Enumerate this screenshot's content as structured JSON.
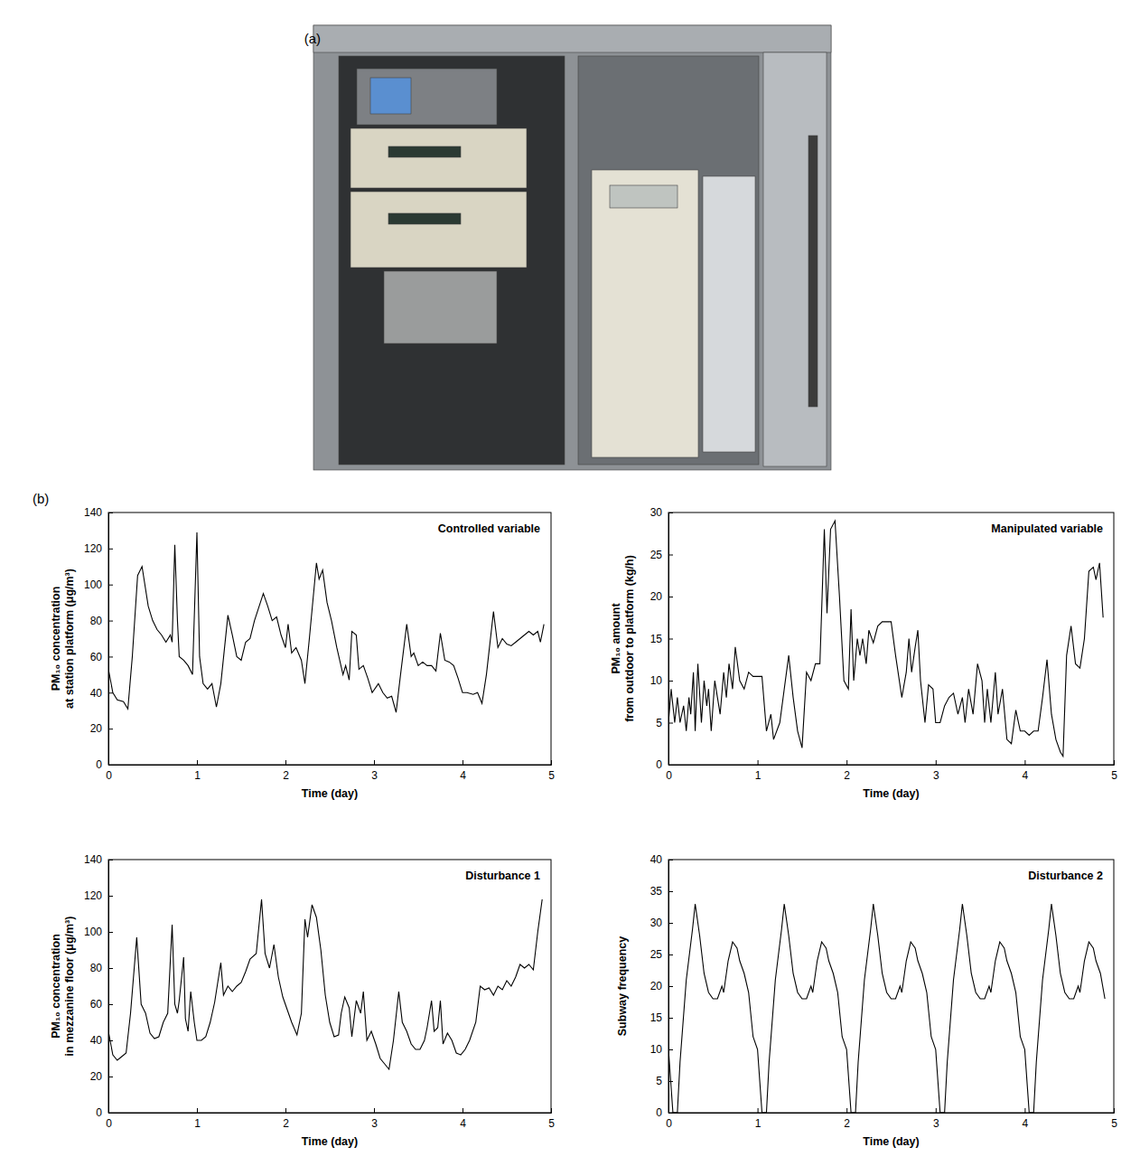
{
  "figure": {
    "panel_a_label": "(a)",
    "panel_b_label": "(b)"
  },
  "chart_data": [
    {
      "type": "line",
      "title": "Controlled variable",
      "x_label": "Time (day)",
      "y_label": [
        "PM₁₀ concentration",
        "at station platform (μg/m³)"
      ],
      "xlim": [
        0,
        5
      ],
      "xticks": [
        0,
        1,
        2,
        3,
        4,
        5
      ],
      "ylim": [
        0,
        140
      ],
      "yticks": [
        0,
        20,
        40,
        60,
        80,
        100,
        120,
        140
      ],
      "grid": false,
      "x": [
        0,
        0.05,
        0.1,
        0.17,
        0.22,
        0.27,
        0.33,
        0.38,
        0.45,
        0.5,
        0.55,
        0.6,
        0.65,
        0.7,
        0.72,
        0.75,
        0.78,
        0.8,
        0.85,
        0.9,
        0.95,
        1.0,
        1.03,
        1.07,
        1.12,
        1.17,
        1.22,
        1.27,
        1.35,
        1.4,
        1.45,
        1.5,
        1.55,
        1.6,
        1.65,
        1.75,
        1.8,
        1.85,
        1.9,
        1.95,
        2.0,
        2.03,
        2.07,
        2.12,
        2.18,
        2.22,
        2.27,
        2.35,
        2.38,
        2.42,
        2.47,
        2.52,
        2.58,
        2.65,
        2.68,
        2.72,
        2.75,
        2.8,
        2.83,
        2.88,
        2.93,
        2.98,
        3.05,
        3.1,
        3.15,
        3.2,
        3.25,
        3.3,
        3.37,
        3.42,
        3.45,
        3.5,
        3.55,
        3.6,
        3.65,
        3.7,
        3.75,
        3.8,
        3.85,
        3.9,
        3.95,
        4.0,
        4.05,
        4.12,
        4.17,
        4.22,
        4.27,
        4.35,
        4.4,
        4.45,
        4.5,
        4.55,
        4.6,
        4.65,
        4.7,
        4.75,
        4.8,
        4.85,
        4.88,
        4.92
      ],
      "series": [
        {
          "color": "#000000",
          "values": [
            53,
            40,
            36,
            35,
            31,
            60,
            105,
            110,
            88,
            80,
            75,
            72,
            68,
            72,
            68,
            122,
            80,
            60,
            58,
            55,
            50,
            129,
            60,
            45,
            42,
            45,
            32,
            45,
            83,
            72,
            60,
            58,
            68,
            70,
            80,
            95,
            88,
            80,
            82,
            72,
            65,
            78,
            62,
            65,
            58,
            45,
            70,
            112,
            103,
            108,
            90,
            80,
            65,
            50,
            55,
            47,
            74,
            72,
            53,
            55,
            48,
            40,
            45,
            40,
            37,
            38,
            29,
            50,
            78,
            60,
            62,
            55,
            57,
            55,
            55,
            52,
            73,
            58,
            57,
            55,
            48,
            40,
            40,
            39,
            40,
            34,
            50,
            85,
            65,
            70,
            67,
            66,
            68,
            70,
            72,
            74,
            72,
            74,
            68,
            78
          ]
        }
      ]
    },
    {
      "type": "line",
      "title": "Manipulated variable",
      "x_label": "Time (day)",
      "y_label": [
        "PM₁₀ amount",
        "from outdoor to platform (kg/h)"
      ],
      "xlim": [
        0,
        5
      ],
      "xticks": [
        0,
        1,
        2,
        3,
        4,
        5
      ],
      "ylim": [
        0,
        30
      ],
      "yticks": [
        0,
        5,
        10,
        15,
        20,
        25,
        30
      ],
      "grid": false,
      "x": [
        0,
        0.03,
        0.07,
        0.1,
        0.13,
        0.17,
        0.2,
        0.23,
        0.25,
        0.28,
        0.3,
        0.33,
        0.37,
        0.4,
        0.43,
        0.45,
        0.48,
        0.52,
        0.55,
        0.58,
        0.62,
        0.65,
        0.68,
        0.72,
        0.75,
        0.8,
        0.85,
        0.9,
        0.95,
        1.05,
        1.1,
        1.15,
        1.18,
        1.25,
        1.35,
        1.4,
        1.45,
        1.5,
        1.55,
        1.6,
        1.65,
        1.7,
        1.75,
        1.78,
        1.82,
        1.87,
        1.92,
        1.97,
        2.02,
        2.05,
        2.08,
        2.12,
        2.15,
        2.18,
        2.22,
        2.25,
        2.3,
        2.35,
        2.4,
        2.45,
        2.5,
        2.55,
        2.62,
        2.67,
        2.7,
        2.73,
        2.77,
        2.8,
        2.83,
        2.88,
        2.92,
        2.97,
        3.0,
        3.05,
        3.1,
        3.15,
        3.2,
        3.25,
        3.3,
        3.33,
        3.37,
        3.42,
        3.47,
        3.52,
        3.55,
        3.58,
        3.62,
        3.67,
        3.7,
        3.75,
        3.8,
        3.85,
        3.9,
        3.95,
        4.0,
        4.05,
        4.1,
        4.15,
        4.2,
        4.25,
        4.3,
        4.35,
        4.4,
        4.43,
        4.47,
        4.52,
        4.57,
        4.62,
        4.67,
        4.72,
        4.77,
        4.8,
        4.84,
        4.88
      ],
      "series": [
        {
          "color": "#000000",
          "values": [
            5,
            9,
            5,
            8,
            5,
            7,
            4,
            8,
            6,
            11,
            4,
            12,
            5,
            10,
            7,
            9,
            4,
            10,
            8,
            6,
            11,
            8,
            12,
            9,
            14,
            10,
            9,
            11,
            10.5,
            10.5,
            4,
            6,
            3,
            5,
            13,
            8,
            4,
            2,
            11,
            10,
            12,
            12,
            28,
            18,
            28,
            29,
            20,
            10,
            9,
            18.5,
            10,
            15,
            13,
            15,
            12,
            16,
            14.5,
            16.5,
            17,
            17,
            17,
            13,
            8,
            11,
            15,
            11,
            14,
            16,
            10,
            5,
            9.5,
            9,
            5,
            5,
            7,
            8,
            8.5,
            6,
            8,
            5,
            9,
            6,
            12,
            10,
            5,
            9,
            5,
            11,
            6,
            9,
            3,
            2.5,
            6.5,
            4,
            4,
            3.5,
            4,
            4,
            8,
            12.5,
            6,
            3,
            1.5,
            1,
            13,
            16.5,
            12,
            11.5,
            15,
            23,
            23.5,
            22,
            24,
            17.5
          ]
        }
      ]
    },
    {
      "type": "line",
      "title": "Disturbance 1",
      "x_label": "Time (day)",
      "y_label": [
        "PM₁₀ concentration",
        "in mezzanine floor (μg/m³)"
      ],
      "xlim": [
        0,
        5
      ],
      "xticks": [
        0,
        1,
        2,
        3,
        4,
        5
      ],
      "ylim": [
        0,
        140
      ],
      "yticks": [
        0,
        20,
        40,
        60,
        80,
        100,
        120,
        140
      ],
      "grid": false,
      "x": [
        0,
        0.05,
        0.1,
        0.15,
        0.2,
        0.25,
        0.32,
        0.37,
        0.42,
        0.47,
        0.52,
        0.57,
        0.62,
        0.67,
        0.72,
        0.75,
        0.78,
        0.8,
        0.85,
        0.87,
        0.9,
        0.93,
        0.97,
        1.0,
        1.05,
        1.1,
        1.15,
        1.2,
        1.27,
        1.3,
        1.35,
        1.4,
        1.45,
        1.5,
        1.55,
        1.6,
        1.67,
        1.73,
        1.77,
        1.82,
        1.87,
        1.92,
        1.97,
        2.02,
        2.07,
        2.13,
        2.18,
        2.22,
        2.25,
        2.3,
        2.35,
        2.4,
        2.45,
        2.5,
        2.55,
        2.6,
        2.63,
        2.67,
        2.72,
        2.75,
        2.8,
        2.85,
        2.88,
        2.92,
        2.97,
        3.02,
        3.07,
        3.12,
        3.17,
        3.22,
        3.28,
        3.32,
        3.37,
        3.42,
        3.47,
        3.52,
        3.57,
        3.6,
        3.65,
        3.68,
        3.72,
        3.75,
        3.78,
        3.83,
        3.88,
        3.93,
        3.98,
        4.03,
        4.08,
        4.15,
        4.2,
        4.25,
        4.3,
        4.35,
        4.4,
        4.45,
        4.5,
        4.55,
        4.6,
        4.65,
        4.7,
        4.75,
        4.8,
        4.85,
        4.9
      ],
      "series": [
        {
          "color": "#000000",
          "values": [
            45,
            32,
            29,
            31,
            33,
            55,
            97,
            60,
            55,
            44,
            41,
            42,
            50,
            55,
            104,
            60,
            55,
            62,
            86,
            52,
            45,
            67,
            50,
            40,
            40,
            42,
            50,
            61,
            83,
            65,
            70,
            67,
            70,
            72,
            78,
            85,
            88,
            118,
            88,
            80,
            93,
            75,
            64,
            57,
            50,
            43,
            55,
            107,
            97,
            115,
            108,
            90,
            65,
            50,
            42,
            43,
            55,
            64,
            58,
            42,
            62,
            55,
            67,
            40,
            45,
            38,
            30,
            27,
            24,
            40,
            67,
            50,
            45,
            38,
            35,
            35,
            40,
            47,
            62,
            45,
            47,
            62,
            38,
            44,
            40,
            33,
            32,
            35,
            40,
            50,
            70,
            68,
            69,
            65,
            70,
            68,
            73,
            70,
            75,
            82,
            80,
            82,
            79,
            100,
            118
          ]
        }
      ]
    },
    {
      "type": "line",
      "title": "Disturbance 2",
      "x_label": "Time (day)",
      "y_label": [
        "Subway frequency"
      ],
      "xlim": [
        0,
        5
      ],
      "xticks": [
        0,
        1,
        2,
        3,
        4,
        5
      ],
      "ylim": [
        0,
        40
      ],
      "yticks": [
        0,
        5,
        10,
        15,
        20,
        25,
        30,
        35,
        40
      ],
      "grid": false,
      "x": [
        0,
        0.05,
        0.1,
        0.13,
        0.2,
        0.27,
        0.3,
        0.35,
        0.4,
        0.45,
        0.5,
        0.55,
        0.6,
        0.62,
        0.67,
        0.72,
        0.77,
        0.8,
        0.85,
        0.9,
        0.95,
        1,
        1.05,
        1.1,
        1.13,
        1.2,
        1.27,
        1.3,
        1.35,
        1.4,
        1.45,
        1.5,
        1.55,
        1.6,
        1.62,
        1.67,
        1.72,
        1.77,
        1.8,
        1.85,
        1.9,
        1.95,
        2,
        2.05,
        2.1,
        2.13,
        2.2,
        2.27,
        2.3,
        2.35,
        2.4,
        2.45,
        2.5,
        2.55,
        2.6,
        2.62,
        2.67,
        2.72,
        2.77,
        2.8,
        2.85,
        2.9,
        2.95,
        3,
        3.05,
        3.1,
        3.13,
        3.2,
        3.27,
        3.3,
        3.35,
        3.4,
        3.45,
        3.5,
        3.55,
        3.6,
        3.62,
        3.67,
        3.72,
        3.77,
        3.8,
        3.85,
        3.9,
        3.95,
        4,
        4.05,
        4.1,
        4.13,
        4.2,
        4.27,
        4.3,
        4.35,
        4.4,
        4.45,
        4.5,
        4.55,
        4.6,
        4.62,
        4.67,
        4.72,
        4.77,
        4.8,
        4.85,
        4.9
      ],
      "series": [
        {
          "color": "#000000",
          "values": [
            10,
            0,
            0,
            8,
            21,
            29,
            33,
            28,
            22,
            19,
            18,
            18,
            20,
            19,
            24,
            27,
            26,
            24,
            22,
            19,
            12,
            10,
            0,
            0,
            8,
            21,
            29,
            33,
            28,
            22,
            19,
            18,
            18,
            20,
            19,
            24,
            27,
            26,
            24,
            22,
            19,
            12,
            10,
            0,
            0,
            8,
            21,
            29,
            33,
            28,
            22,
            19,
            18,
            18,
            20,
            19,
            24,
            27,
            26,
            24,
            22,
            19,
            12,
            10,
            0,
            0,
            8,
            21,
            29,
            33,
            28,
            22,
            19,
            18,
            18,
            20,
            19,
            24,
            27,
            26,
            24,
            22,
            19,
            12,
            10,
            0,
            0,
            8,
            21,
            29,
            33,
            28,
            22,
            19,
            18,
            18,
            20,
            19,
            24,
            27,
            26,
            24,
            22,
            18
          ]
        }
      ]
    }
  ]
}
